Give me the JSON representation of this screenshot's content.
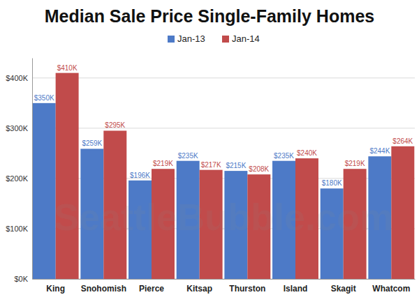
{
  "chart_data": {
    "type": "bar",
    "title": "Median Sale Price Single-Family Homes",
    "watermark": "SeattleBubble.com",
    "categories": [
      "King",
      "Snohomish",
      "Pierce",
      "Kitsap",
      "Thurston",
      "Island",
      "Skagit",
      "Whatcom"
    ],
    "series": [
      {
        "name": "Jan-13",
        "color": "#4d7ac7",
        "values": [
          350000,
          259000,
          196000,
          235000,
          215000,
          235000,
          180000,
          244000
        ],
        "value_labels": [
          "$350K",
          "$259K",
          "$196K",
          "$235K",
          "$215K",
          "$235K",
          "$180K",
          "$244K"
        ]
      },
      {
        "name": "Jan-14",
        "color": "#c14b4b",
        "values": [
          410000,
          295000,
          219000,
          217000,
          208000,
          240000,
          219000,
          264000
        ],
        "value_labels": [
          "$410K",
          "$295K",
          "$219K",
          "$217K",
          "$208K",
          "$240K",
          "$219K",
          "$264K"
        ]
      }
    ],
    "ylim": [
      0,
      440000
    ],
    "yticks": [
      {
        "value": 0,
        "label": "$0K"
      },
      {
        "value": 100000,
        "label": "$100K"
      },
      {
        "value": 200000,
        "label": "$200K"
      },
      {
        "value": 300000,
        "label": "$300K"
      },
      {
        "value": 400000,
        "label": "$400K"
      }
    ],
    "grid": true,
    "legend": "top",
    "data_labels": true
  }
}
